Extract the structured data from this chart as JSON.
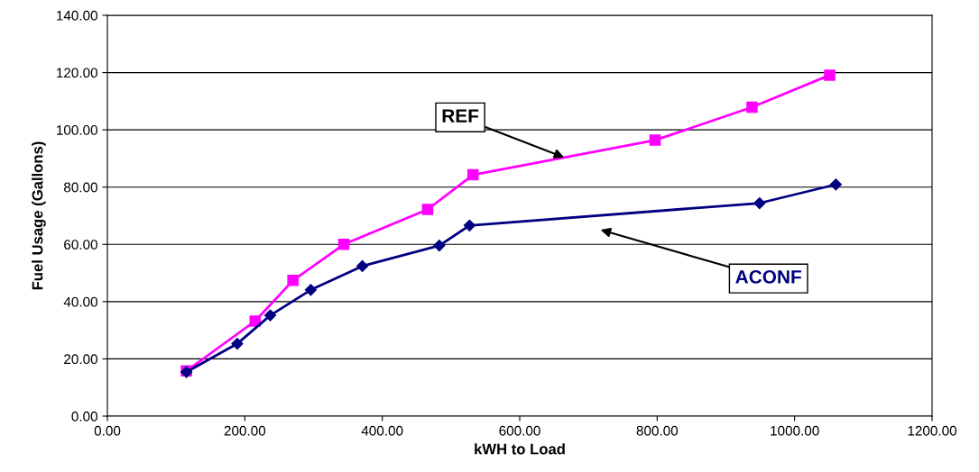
{
  "chart_data": {
    "type": "line",
    "xlabel": "kWH to Load",
    "ylabel": "Fuel Usage (Gallons)",
    "xlim": [
      0,
      1200
    ],
    "xticks": [
      {
        "value": 0,
        "label": "0.00"
      },
      {
        "value": 200,
        "label": "200.00"
      },
      {
        "value": 400,
        "label": "400.00"
      },
      {
        "value": 600,
        "label": "600.00"
      },
      {
        "value": 800,
        "label": "800.00"
      },
      {
        "value": 1000,
        "label": "1000.00"
      },
      {
        "value": 1200,
        "label": "1200.00"
      }
    ],
    "ylim": [
      0,
      140
    ],
    "yticks": [
      {
        "value": 0,
        "label": "0.00"
      },
      {
        "value": 20,
        "label": "20.00"
      },
      {
        "value": 40,
        "label": "40.00"
      },
      {
        "value": 60,
        "label": "60.00"
      },
      {
        "value": 80,
        "label": "80.00"
      },
      {
        "value": 100,
        "label": "100.00"
      },
      {
        "value": 120,
        "label": "120.00"
      },
      {
        "value": 140,
        "label": "140.00"
      }
    ],
    "grid": "y",
    "legend": false,
    "line_style": "solid",
    "series": [
      {
        "name": "REF",
        "color": "#ff00ff",
        "marker": "square",
        "x": [
          115,
          215,
          270,
          344,
          466,
          532,
          797,
          938,
          1051
        ],
        "values": [
          15.8,
          33.2,
          47.4,
          60.0,
          72.2,
          84.3,
          96.4,
          107.9,
          119.1
        ]
      },
      {
        "name": "ACONF",
        "color": "#000080",
        "marker": "diamond",
        "x": [
          115,
          189,
          237,
          296,
          371,
          483,
          527,
          949,
          1060
        ],
        "values": [
          15.4,
          25.3,
          35.2,
          44.1,
          52.4,
          59.6,
          66.6,
          74.4,
          80.9
        ]
      }
    ]
  }
}
